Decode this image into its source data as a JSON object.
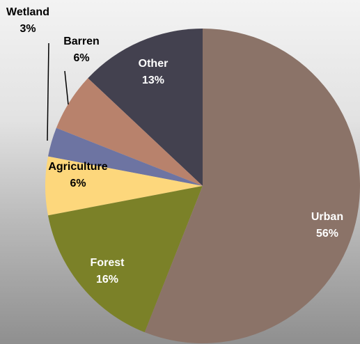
{
  "chart_data": {
    "type": "pie",
    "categories": [
      "Urban",
      "Forest",
      "Agriculture",
      "Wetland",
      "Barren",
      "Other"
    ],
    "values": [
      56,
      16,
      6,
      3,
      6,
      13
    ],
    "value_labels": [
      "56%",
      "16%",
      "6%",
      "3%",
      "6%",
      "13%"
    ],
    "colors": [
      "#8b7368",
      "#7b8128",
      "#fdd77c",
      "#6d74a2",
      "#b8826c",
      "#43414f"
    ]
  }
}
